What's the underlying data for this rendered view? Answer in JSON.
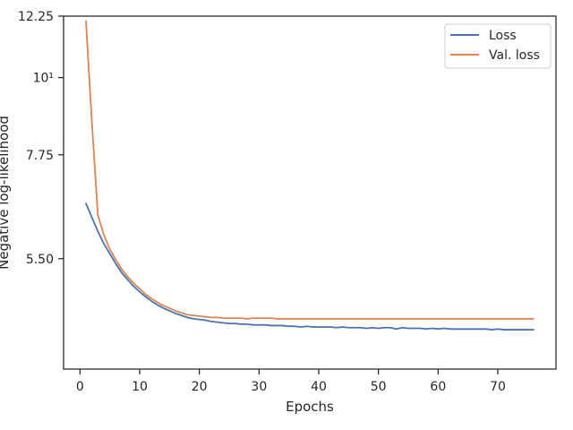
{
  "chart_data": {
    "type": "line",
    "title": "",
    "xlabel": "Epochs",
    "ylabel": "Negative log-likelihood",
    "yscale": "log",
    "xlim": [
      -2.75,
      79.75
    ],
    "ylim": [
      3.82,
      12.25
    ],
    "xticks": [
      0,
      10,
      20,
      30,
      40,
      50,
      60,
      70
    ],
    "xtick_labels": [
      "0",
      "10",
      "20",
      "30",
      "40",
      "50",
      "60",
      "70"
    ],
    "yticks": [
      5.5,
      7.75,
      10,
      12.25
    ],
    "ytick_labels": [
      "5.50",
      "7.75",
      "10¹",
      "12.25"
    ],
    "grid": false,
    "legend": {
      "position": "top-right",
      "entries": [
        "Loss",
        "Val. loss"
      ]
    },
    "series": [
      {
        "name": "Loss",
        "color": "#4c72b0",
        "x": [
          1,
          2,
          3,
          4,
          5,
          6,
          7,
          8,
          9,
          10,
          11,
          12,
          13,
          14,
          15,
          16,
          17,
          18,
          19,
          20,
          21,
          22,
          23,
          24,
          25,
          26,
          27,
          28,
          29,
          30,
          31,
          32,
          33,
          34,
          35,
          36,
          37,
          38,
          39,
          40,
          41,
          42,
          43,
          44,
          45,
          46,
          47,
          48,
          49,
          50,
          51,
          52,
          53,
          54,
          55,
          56,
          57,
          58,
          59,
          60,
          61,
          62,
          63,
          64,
          65,
          66,
          67,
          68,
          69,
          70,
          71,
          72,
          73,
          74,
          75,
          76
        ],
        "y": [
          6.6,
          6.3,
          6.02,
          5.78,
          5.59,
          5.41,
          5.25,
          5.13,
          5.02,
          4.93,
          4.85,
          4.78,
          4.72,
          4.67,
          4.63,
          4.59,
          4.56,
          4.53,
          4.51,
          4.5,
          4.49,
          4.47,
          4.46,
          4.45,
          4.44,
          4.44,
          4.43,
          4.43,
          4.42,
          4.42,
          4.42,
          4.41,
          4.41,
          4.41,
          4.4,
          4.4,
          4.39,
          4.4,
          4.39,
          4.39,
          4.39,
          4.39,
          4.38,
          4.39,
          4.38,
          4.38,
          4.38,
          4.37,
          4.38,
          4.37,
          4.38,
          4.38,
          4.36,
          4.38,
          4.37,
          4.37,
          4.37,
          4.36,
          4.37,
          4.36,
          4.37,
          4.36,
          4.36,
          4.36,
          4.36,
          4.36,
          4.36,
          4.36,
          4.35,
          4.36,
          4.35,
          4.35,
          4.35,
          4.35,
          4.35,
          4.35
        ]
      },
      {
        "name": "Val. loss",
        "color": "#dd8452",
        "x": [
          1,
          2,
          3,
          4,
          5,
          6,
          7,
          8,
          9,
          10,
          11,
          12,
          13,
          14,
          15,
          16,
          17,
          18,
          19,
          20,
          21,
          22,
          23,
          24,
          25,
          26,
          27,
          28,
          29,
          30,
          31,
          32,
          33,
          34,
          35,
          36,
          37,
          38,
          39,
          40,
          41,
          42,
          43,
          44,
          45,
          46,
          47,
          48,
          49,
          50,
          51,
          52,
          53,
          54,
          55,
          56,
          57,
          58,
          59,
          60,
          61,
          62,
          63,
          64,
          65,
          66,
          67,
          68,
          69,
          70,
          71,
          72,
          73,
          74,
          75,
          76
        ],
        "y": [
          12.05,
          8.6,
          6.35,
          5.95,
          5.67,
          5.48,
          5.31,
          5.18,
          5.07,
          4.98,
          4.89,
          4.82,
          4.76,
          4.71,
          4.67,
          4.63,
          4.6,
          4.57,
          4.56,
          4.55,
          4.54,
          4.53,
          4.53,
          4.52,
          4.52,
          4.52,
          4.52,
          4.51,
          4.52,
          4.52,
          4.52,
          4.52,
          4.51,
          4.51,
          4.51,
          4.51,
          4.51,
          4.51,
          4.51,
          4.51,
          4.51,
          4.51,
          4.51,
          4.51,
          4.51,
          4.51,
          4.51,
          4.51,
          4.51,
          4.51,
          4.51,
          4.51,
          4.51,
          4.51,
          4.51,
          4.51,
          4.51,
          4.51,
          4.51,
          4.51,
          4.51,
          4.51,
          4.51,
          4.51,
          4.51,
          4.51,
          4.51,
          4.51,
          4.51,
          4.51,
          4.51,
          4.51,
          4.51,
          4.51,
          4.51,
          4.51
        ]
      }
    ]
  }
}
